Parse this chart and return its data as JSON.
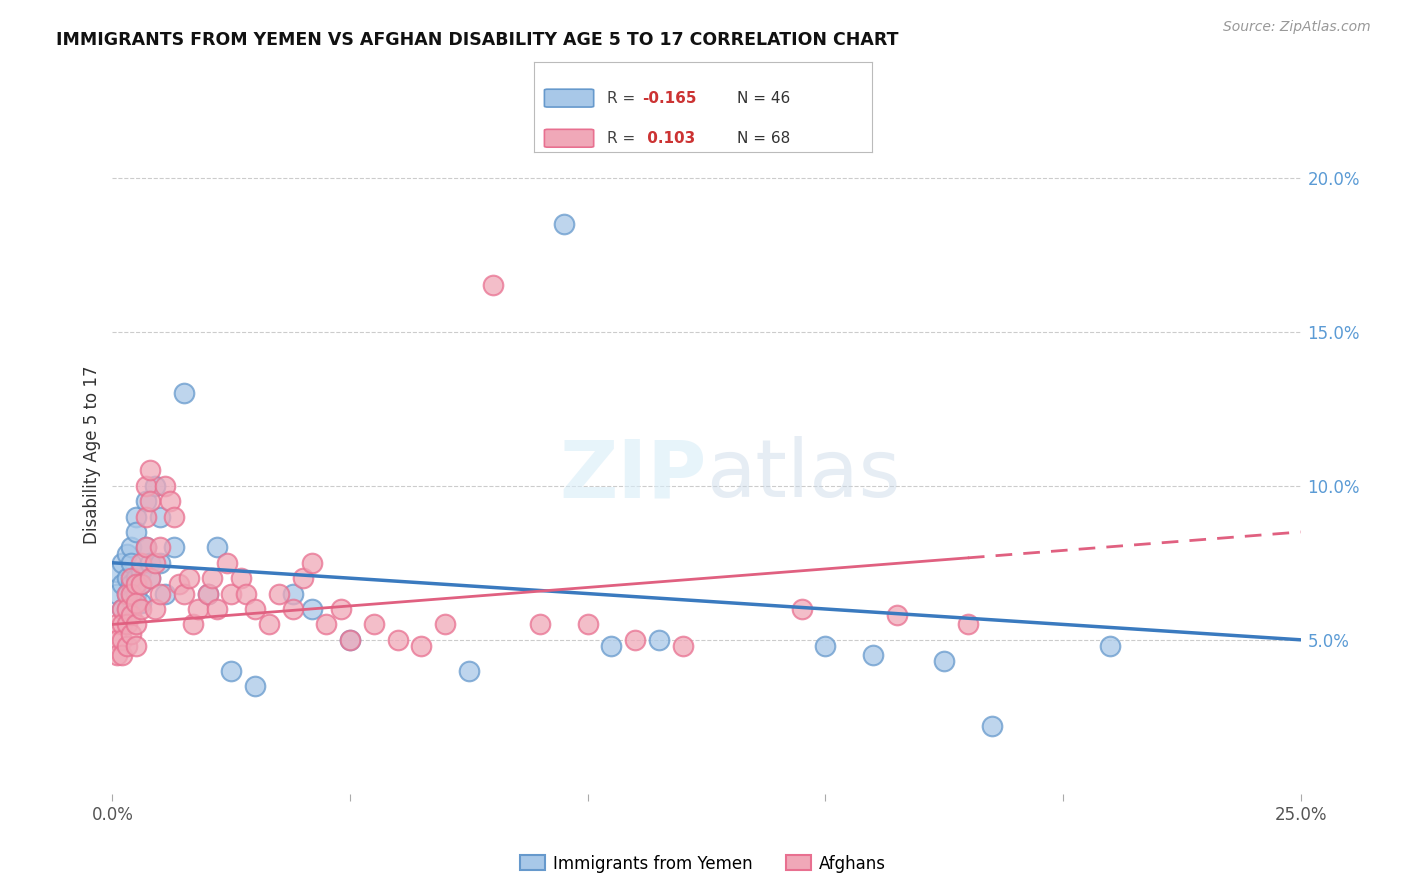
{
  "title": "IMMIGRANTS FROM YEMEN VS AFGHAN DISABILITY AGE 5 TO 17 CORRELATION CHART",
  "source": "Source: ZipAtlas.com",
  "ylabel": "Disability Age 5 to 17",
  "xlim": [
    0,
    0.25
  ],
  "ylim": [
    0,
    0.22
  ],
  "right_yticks": [
    0.05,
    0.1,
    0.15,
    0.2
  ],
  "right_ytick_labels": [
    "5.0%",
    "10.0%",
    "15.0%",
    "20.0%"
  ],
  "yemen_color": "#a8c8e8",
  "afghan_color": "#f0a8b8",
  "yemen_edge_color": "#6699cc",
  "afghan_edge_color": "#e87090",
  "yemen_line_color": "#3a7abf",
  "afghan_line_color": "#e06080",
  "grid_color": "#cccccc",
  "background_color": "#ffffff",
  "yemen_R": "-0.165",
  "yemen_N": "46",
  "afghan_R": "0.103",
  "afghan_N": "68",
  "yemen_x": [
    0.001,
    0.001,
    0.002,
    0.002,
    0.002,
    0.003,
    0.003,
    0.003,
    0.003,
    0.004,
    0.004,
    0.004,
    0.004,
    0.005,
    0.005,
    0.005,
    0.005,
    0.006,
    0.006,
    0.006,
    0.007,
    0.007,
    0.008,
    0.008,
    0.009,
    0.01,
    0.01,
    0.011,
    0.013,
    0.015,
    0.02,
    0.022,
    0.025,
    0.03,
    0.038,
    0.042,
    0.05,
    0.075,
    0.095,
    0.105,
    0.115,
    0.15,
    0.16,
    0.175,
    0.185,
    0.21
  ],
  "yemen_y": [
    0.065,
    0.072,
    0.075,
    0.068,
    0.06,
    0.078,
    0.07,
    0.065,
    0.06,
    0.08,
    0.075,
    0.068,
    0.063,
    0.09,
    0.085,
    0.07,
    0.065,
    0.072,
    0.068,
    0.062,
    0.095,
    0.08,
    0.075,
    0.07,
    0.1,
    0.09,
    0.075,
    0.065,
    0.08,
    0.13,
    0.065,
    0.08,
    0.04,
    0.035,
    0.065,
    0.06,
    0.05,
    0.04,
    0.185,
    0.048,
    0.05,
    0.048,
    0.045,
    0.043,
    0.022,
    0.048
  ],
  "afghan_x": [
    0.001,
    0.001,
    0.001,
    0.002,
    0.002,
    0.002,
    0.002,
    0.003,
    0.003,
    0.003,
    0.003,
    0.004,
    0.004,
    0.004,
    0.004,
    0.005,
    0.005,
    0.005,
    0.005,
    0.006,
    0.006,
    0.006,
    0.007,
    0.007,
    0.007,
    0.008,
    0.008,
    0.008,
    0.009,
    0.009,
    0.01,
    0.01,
    0.011,
    0.012,
    0.013,
    0.014,
    0.015,
    0.016,
    0.017,
    0.018,
    0.02,
    0.021,
    0.022,
    0.024,
    0.025,
    0.027,
    0.028,
    0.03,
    0.033,
    0.035,
    0.038,
    0.04,
    0.042,
    0.045,
    0.048,
    0.05,
    0.055,
    0.06,
    0.065,
    0.07,
    0.08,
    0.09,
    0.1,
    0.11,
    0.12,
    0.145,
    0.165,
    0.18
  ],
  "afghan_y": [
    0.055,
    0.05,
    0.045,
    0.06,
    0.055,
    0.05,
    0.045,
    0.065,
    0.06,
    0.055,
    0.048,
    0.07,
    0.065,
    0.058,
    0.052,
    0.068,
    0.062,
    0.055,
    0.048,
    0.075,
    0.068,
    0.06,
    0.1,
    0.09,
    0.08,
    0.105,
    0.095,
    0.07,
    0.075,
    0.06,
    0.08,
    0.065,
    0.1,
    0.095,
    0.09,
    0.068,
    0.065,
    0.07,
    0.055,
    0.06,
    0.065,
    0.07,
    0.06,
    0.075,
    0.065,
    0.07,
    0.065,
    0.06,
    0.055,
    0.065,
    0.06,
    0.07,
    0.075,
    0.055,
    0.06,
    0.05,
    0.055,
    0.05,
    0.048,
    0.055,
    0.165,
    0.055,
    0.055,
    0.05,
    0.048,
    0.06,
    0.058,
    0.055
  ]
}
